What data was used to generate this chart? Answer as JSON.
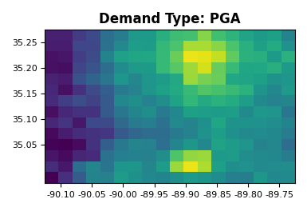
{
  "title": "Demand Type: PGA",
  "colormap": "viridis",
  "figsize": [
    3.85,
    2.64
  ],
  "dpi": 100,
  "title_fontsize": 12,
  "title_fontweight": "bold",
  "xlim": [
    -90.125,
    -89.725
  ],
  "ylim": [
    34.975,
    35.275
  ],
  "xticks": [
    -90.1,
    -90.05,
    -90.0,
    -89.95,
    -89.9,
    -89.85,
    -89.8,
    -89.75
  ],
  "yticks": [
    35.05,
    35.1,
    35.15,
    35.2,
    35.25
  ],
  "lon_min": -90.125,
  "lon_max": -89.725,
  "lat_min": 34.975,
  "lat_max": 35.275,
  "grid": [
    [
      0.05,
      0.1,
      0.3,
      0.42,
      0.38,
      0.55,
      0.5,
      0.52,
      0.48,
      0.5,
      0.52,
      0.48,
      0.5,
      0.48,
      0.45,
      0.48,
      0.5,
      0.48
    ],
    [
      0.08,
      0.12,
      0.35,
      0.4,
      0.42,
      0.52,
      0.48,
      0.5,
      0.55,
      0.82,
      0.95,
      0.88,
      0.6,
      0.5,
      0.52,
      0.48,
      0.5,
      0.45
    ],
    [
      0.03,
      0.05,
      0.1,
      0.15,
      0.38,
      0.45,
      0.42,
      0.45,
      0.5,
      0.7,
      0.85,
      0.8,
      0.58,
      0.52,
      0.5,
      0.48,
      0.45,
      0.42
    ],
    [
      0.02,
      0.04,
      0.08,
      0.12,
      0.3,
      0.38,
      0.4,
      0.42,
      0.42,
      0.48,
      0.52,
      0.5,
      0.52,
      0.5,
      0.48,
      0.45,
      0.42,
      0.4
    ],
    [
      0.05,
      0.08,
      0.1,
      0.15,
      0.2,
      0.3,
      0.35,
      0.38,
      0.4,
      0.42,
      0.45,
      0.48,
      0.52,
      0.5,
      0.48,
      0.45,
      0.42,
      0.4
    ],
    [
      0.08,
      0.1,
      0.12,
      0.18,
      0.25,
      0.35,
      0.38,
      0.4,
      0.42,
      0.45,
      0.5,
      0.52,
      0.55,
      0.52,
      0.5,
      0.48,
      0.45,
      0.42
    ],
    [
      0.1,
      0.12,
      0.15,
      0.2,
      0.28,
      0.38,
      0.42,
      0.44,
      0.46,
      0.5,
      0.55,
      0.6,
      0.58,
      0.55,
      0.52,
      0.5,
      0.48,
      0.45
    ],
    [
      0.12,
      0.15,
      0.18,
      0.22,
      0.32,
      0.42,
      0.45,
      0.48,
      0.5,
      0.55,
      0.62,
      0.65,
      0.62,
      0.58,
      0.55,
      0.52,
      0.5,
      0.48
    ],
    [
      0.08,
      0.1,
      0.2,
      0.25,
      0.35,
      0.45,
      0.5,
      0.52,
      0.55,
      0.62,
      0.72,
      0.75,
      0.7,
      0.62,
      0.58,
      0.55,
      0.52,
      0.5
    ],
    [
      0.05,
      0.08,
      0.22,
      0.28,
      0.38,
      0.48,
      0.52,
      0.55,
      0.58,
      0.65,
      0.8,
      0.85,
      0.75,
      0.65,
      0.6,
      0.58,
      0.55,
      0.52
    ],
    [
      0.04,
      0.06,
      0.18,
      0.3,
      0.4,
      0.5,
      0.55,
      0.58,
      0.62,
      0.7,
      0.9,
      0.95,
      0.8,
      0.68,
      0.62,
      0.6,
      0.58,
      0.55
    ],
    [
      0.03,
      0.05,
      0.15,
      0.28,
      0.42,
      0.52,
      0.58,
      0.62,
      0.65,
      0.75,
      0.95,
      1.0,
      0.85,
      0.7,
      0.65,
      0.62,
      0.6,
      0.58
    ],
    [
      0.04,
      0.06,
      0.18,
      0.25,
      0.4,
      0.5,
      0.55,
      0.6,
      0.62,
      0.72,
      0.88,
      0.92,
      0.8,
      0.68,
      0.62,
      0.6,
      0.58,
      0.55
    ],
    [
      0.05,
      0.08,
      0.2,
      0.22,
      0.35,
      0.45,
      0.5,
      0.55,
      0.58,
      0.65,
      0.75,
      0.8,
      0.72,
      0.62,
      0.58,
      0.55,
      0.52,
      0.5
    ]
  ]
}
